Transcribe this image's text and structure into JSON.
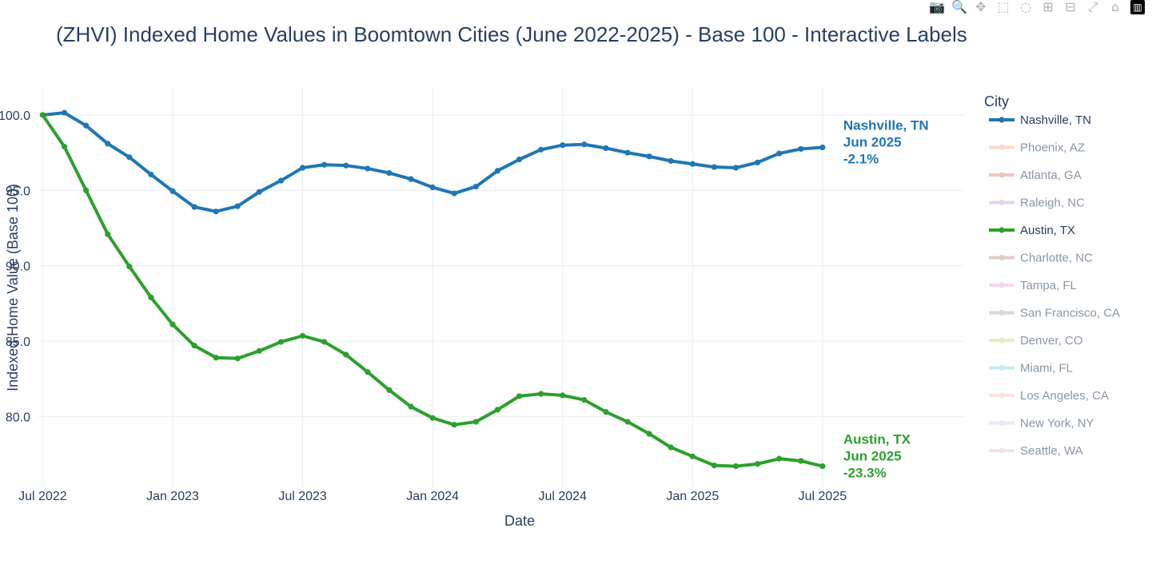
{
  "modebar": {
    "buttons": [
      {
        "name": "camera-icon",
        "glyph": "📷"
      },
      {
        "name": "zoom-icon",
        "glyph": "🔍",
        "active": true
      },
      {
        "name": "pan-icon",
        "glyph": "✥"
      },
      {
        "name": "box-select-icon",
        "glyph": "⬚"
      },
      {
        "name": "lasso-select-icon",
        "glyph": "◌"
      },
      {
        "name": "zoom-in-icon",
        "glyph": "⊞"
      },
      {
        "name": "zoom-out-icon",
        "glyph": "⊟"
      },
      {
        "name": "autoscale-icon",
        "glyph": "⤢"
      },
      {
        "name": "reset-axes-icon",
        "glyph": "⌂"
      },
      {
        "name": "plotly-logo-icon",
        "glyph": "▥",
        "logo": true
      }
    ]
  },
  "chart_data": {
    "type": "line",
    "title": "(ZHVI) Indexed Home Values in Boomtown Cities (June 2022-2025) - Base 100 - Interactive Labels",
    "xlabel": "Date",
    "ylabel": "Indexed Home Value (Base 100)",
    "x_start": "Jun 2022",
    "x_ticks": [
      "Jul 2022",
      "Jan 2023",
      "Jul 2023",
      "Jan 2024",
      "Jul 2024",
      "Jan 2025",
      "Jul 2025"
    ],
    "x_tick_months": [
      1,
      7,
      13,
      19,
      25,
      31,
      37
    ],
    "x_range": [
      0.8,
      43.5
    ],
    "y_ticks": [
      "80.0",
      "85.0",
      "90.0",
      "95.0",
      "100.0"
    ],
    "y_range": [
      75.3,
      101.8
    ],
    "grid": true,
    "legend_title": "City",
    "legend_position": "right",
    "series": [
      {
        "name": "Nashville, TN",
        "color": "#1f77b4",
        "visible": true,
        "x": [
          "Jul 2022",
          "Aug 2022",
          "Sep 2022",
          "Oct 2022",
          "Nov 2022",
          "Dec 2022",
          "Jan 2023",
          "Feb 2023",
          "Mar 2023",
          "Apr 2023",
          "May 2023",
          "Jun 2023",
          "Jul 2023",
          "Aug 2023",
          "Sep 2023",
          "Oct 2023",
          "Nov 2023",
          "Dec 2023",
          "Jan 2024",
          "Feb 2024",
          "Mar 2024",
          "Apr 2024",
          "May 2024",
          "Jun 2024",
          "Jul 2024",
          "Aug 2024",
          "Sep 2024",
          "Oct 2024",
          "Nov 2024",
          "Dec 2024",
          "Jan 2025",
          "Feb 2025",
          "Mar 2025",
          "Apr 2025",
          "May 2025",
          "Jun 2025",
          "Jul 2025"
        ],
        "values": [
          100.0,
          100.15,
          99.3,
          98.1,
          97.2,
          96.05,
          94.95,
          93.9,
          93.6,
          93.95,
          94.9,
          95.65,
          96.5,
          96.7,
          96.65,
          96.45,
          96.15,
          95.75,
          95.2,
          94.8,
          95.25,
          96.3,
          97.05,
          97.7,
          98.0,
          98.05,
          97.8,
          97.5,
          97.25,
          96.95,
          96.75,
          96.55,
          96.5,
          96.85,
          97.45,
          97.75,
          97.85
        ],
        "end_label": [
          "Nashville, TN",
          "Jun 2025",
          "-2.1%"
        ]
      },
      {
        "name": "Phoenix, AZ",
        "color": "#ffbb99",
        "visible": false
      },
      {
        "name": "Atlanta, GA",
        "color": "#e89b94",
        "visible": false
      },
      {
        "name": "Raleigh, NC",
        "color": "#c9b3e3",
        "visible": false
      },
      {
        "name": "Austin, TX",
        "color": "#2ca02c",
        "visible": true,
        "x": [
          "Jul 2022",
          "Aug 2022",
          "Sep 2022",
          "Oct 2022",
          "Nov 2022",
          "Dec 2022",
          "Jan 2023",
          "Feb 2023",
          "Mar 2023",
          "Apr 2023",
          "May 2023",
          "Jun 2023",
          "Jul 2023",
          "Aug 2023",
          "Sep 2023",
          "Oct 2023",
          "Nov 2023",
          "Dec 2023",
          "Jan 2024",
          "Feb 2024",
          "Mar 2024",
          "Apr 2024",
          "May 2024",
          "Jun 2024",
          "Jul 2024",
          "Aug 2024",
          "Sep 2024",
          "Oct 2024",
          "Nov 2024",
          "Dec 2024",
          "Jan 2025",
          "Feb 2025",
          "Mar 2025",
          "Apr 2025",
          "May 2025",
          "Jun 2025",
          "Jul 2025"
        ],
        "values": [
          100.0,
          97.9,
          95.0,
          92.1,
          89.95,
          87.9,
          86.1,
          84.7,
          83.9,
          83.85,
          84.35,
          84.95,
          85.35,
          84.95,
          84.1,
          82.95,
          81.75,
          80.65,
          79.9,
          79.45,
          79.65,
          80.45,
          81.35,
          81.5,
          81.4,
          81.1,
          80.3,
          79.65,
          78.85,
          77.95,
          77.35,
          76.75,
          76.7,
          76.85,
          77.2,
          77.05,
          76.7
        ],
        "end_label": [
          "Austin, TX",
          "Jun 2025",
          "-23.3%"
        ]
      },
      {
        "name": "Charlotte, NC",
        "color": "#c9a6a1",
        "visible": false
      },
      {
        "name": "Tampa, FL",
        "color": "#f5b7e1",
        "visible": false
      },
      {
        "name": "San Francisco, CA",
        "color": "#bdbdbd",
        "visible": false
      },
      {
        "name": "Denver, CO",
        "color": "#dcdb8a",
        "visible": false
      },
      {
        "name": "Miami, FL",
        "color": "#9ddde6",
        "visible": false
      },
      {
        "name": "Los Angeles, CA",
        "color": "#fbc8cc",
        "visible": false
      },
      {
        "name": "New York, NY",
        "color": "#dad7ec",
        "visible": false
      },
      {
        "name": "Seattle, WA",
        "color": "#e6cfcf",
        "visible": false
      }
    ]
  }
}
